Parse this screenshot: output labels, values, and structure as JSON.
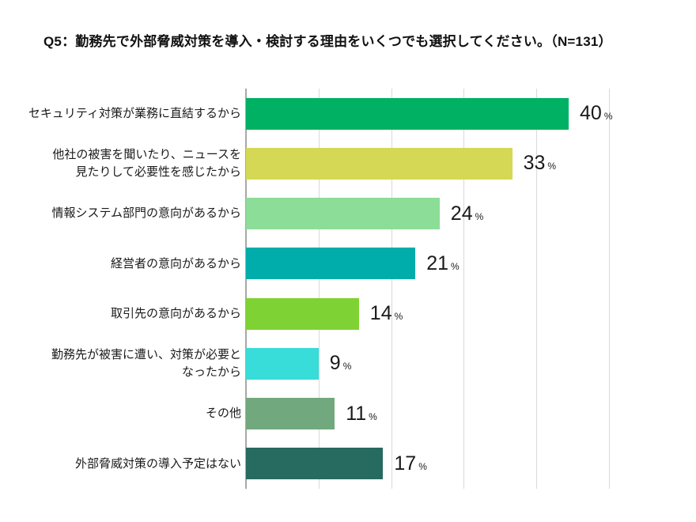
{
  "title": "Q5：勤務先で外部脅威対策を導入・検討する理由をいくつでも選択してください。（N=131）",
  "chart_data": {
    "type": "bar",
    "orientation": "horizontal",
    "title": "Q5：勤務先で外部脅威対策を導入・検討する理由をいくつでも選択してください。（N=131）",
    "sample_size": "N=131",
    "categories": [
      "セキュリティ対策が業務に直結するから",
      "他社の被害を聞いたり、ニュースを\n見たりして必要性を感じたから",
      "情報システム部門の意向があるから",
      "経営者の意向があるから",
      "取引先の意向があるから",
      "勤務先が被害に遭い、対策が必要と\nなったから",
      "その他",
      "外部脅威対策の導入予定はない"
    ],
    "values": [
      40,
      33,
      24,
      21,
      14,
      9,
      11,
      17
    ],
    "value_suffix": "%",
    "bar_colors": [
      "#00b163",
      "#d4d854",
      "#8cdd98",
      "#00adab",
      "#7fd233",
      "#38dcd8",
      "#72a87d",
      "#276a60"
    ],
    "xlim": [
      0,
      45
    ],
    "gridline_interval": 9,
    "grid": true,
    "gridline_color": "#d9d9d9",
    "axis_line_color": "#a8a8a8",
    "legend": "none",
    "xlabel": "",
    "ylabel": ""
  }
}
